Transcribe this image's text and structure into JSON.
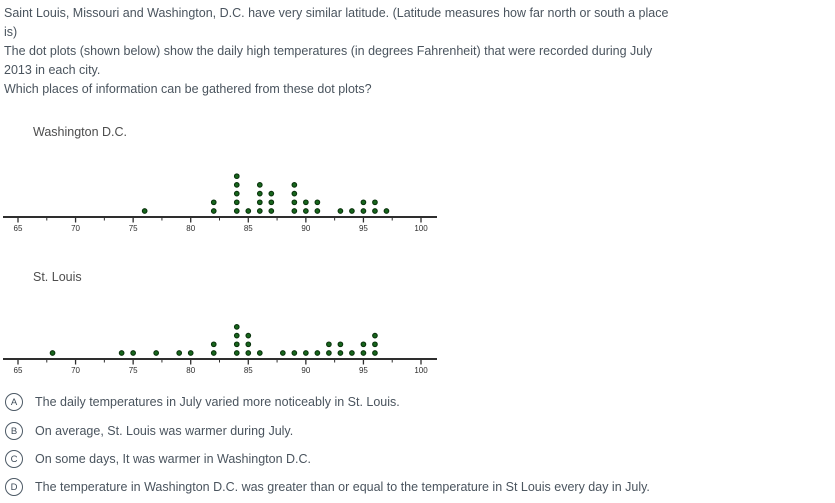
{
  "question": {
    "lines": [
      "Saint Louis, Missouri and Washington, D.C. have very similar latitude. (Latitude measures how far north or south a place",
      "is)",
      "The dot plots (shown below) show the daily high temperatures (in degrees Fahrenheit) that were recorded during July",
      "2013 in each city.",
      "Which places of information can be gathered from these dot plots?"
    ]
  },
  "chart_data": [
    {
      "type": "scatter",
      "variant": "dot-plot",
      "title": "Washington D.C.",
      "xlim": [
        63.5,
        101.5
      ],
      "tick_labels": [
        65,
        70,
        75,
        80,
        85,
        90,
        95,
        100
      ],
      "minor_tick_step": 2.5,
      "grid": false,
      "points": [
        {
          "value": 76,
          "count": 1
        },
        {
          "value": 82,
          "count": 2
        },
        {
          "value": 84,
          "count": 5
        },
        {
          "value": 85,
          "count": 1
        },
        {
          "value": 86,
          "count": 4
        },
        {
          "value": 87,
          "count": 3
        },
        {
          "value": 89,
          "count": 4
        },
        {
          "value": 90,
          "count": 2
        },
        {
          "value": 91,
          "count": 2
        },
        {
          "value": 93,
          "count": 1
        },
        {
          "value": 94,
          "count": 1
        },
        {
          "value": 95,
          "count": 2
        },
        {
          "value": 96,
          "count": 2
        },
        {
          "value": 97,
          "count": 1
        }
      ]
    },
    {
      "type": "scatter",
      "variant": "dot-plot",
      "title": "St. Louis",
      "xlim": [
        63.5,
        101.5
      ],
      "tick_labels": [
        65,
        70,
        75,
        80,
        85,
        90,
        95,
        100
      ],
      "minor_tick_step": 2.5,
      "grid": false,
      "points": [
        {
          "value": 68,
          "count": 1
        },
        {
          "value": 74,
          "count": 1
        },
        {
          "value": 75,
          "count": 1
        },
        {
          "value": 77,
          "count": 1
        },
        {
          "value": 79,
          "count": 1
        },
        {
          "value": 80,
          "count": 1
        },
        {
          "value": 82,
          "count": 2
        },
        {
          "value": 84,
          "count": 4
        },
        {
          "value": 85,
          "count": 3
        },
        {
          "value": 86,
          "count": 1
        },
        {
          "value": 88,
          "count": 1
        },
        {
          "value": 89,
          "count": 1
        },
        {
          "value": 90,
          "count": 1
        },
        {
          "value": 91,
          "count": 1
        },
        {
          "value": 92,
          "count": 2
        },
        {
          "value": 93,
          "count": 2
        },
        {
          "value": 94,
          "count": 1
        },
        {
          "value": 95,
          "count": 2
        },
        {
          "value": 96,
          "count": 3
        }
      ]
    }
  ],
  "options": [
    {
      "letter": "A",
      "text": "The daily temperatures in July varied more noticeably in St. Louis."
    },
    {
      "letter": "B",
      "text": "On average, St. Louis was warmer during July."
    },
    {
      "letter": "C",
      "text": "On some days, It was warmer in Washington D.C."
    },
    {
      "letter": "D",
      "text": "The temperature in Washington D.C. was greater than or equal to the temperature in St Louis every day in July."
    }
  ],
  "colors": {
    "dot_fill": "#17661c",
    "dot_stroke": "#0a330d",
    "axis": "#2e2e2e",
    "body_text": "#4a545e",
    "plot_title": "#4d4d4d"
  }
}
